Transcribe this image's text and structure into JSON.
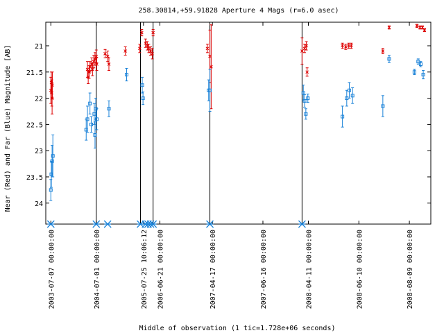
{
  "chart_data": {
    "type": "scatter",
    "title": "258.30814,+59.91828   Aperture 4 Mags (r=6.0 asec)",
    "xlabel": "Middle of observation (1 tic=1.728e+06 seconds)",
    "ylabel": "Near (Red) and Far (Blue) Magnitude [AB]",
    "ylim": [
      24.4,
      20.55
    ],
    "y_ticks": [
      21,
      21.5,
      22,
      22.5,
      23,
      23.5,
      24
    ],
    "x_tick_labels": [
      "2003-07-07 00:00:00",
      "2004-07-01 00:00:00",
      "2005-07-25 10:06:12",
      "2006-06-21 00:00:00",
      "2007-04-17 00:00:00",
      "2007-06-16 00:00:00",
      "2008-04-11 00:00:00",
      "2008-06-10 00:00:00",
      "2008-08-09 00:00:00"
    ],
    "x_tick_index": [
      0,
      1.8,
      3.67,
      4.32,
      6.4,
      8.4,
      10.2,
      12.2,
      14.2
    ],
    "x_range": [
      -0.2,
      15.05
    ],
    "vertical_lines_x": [
      1.8,
      3.55,
      4.05,
      6.3,
      9.95
    ],
    "star_markers_x": [
      0,
      1.8,
      2.25,
      3.55,
      3.75,
      3.85,
      3.95,
      4.05,
      6.3,
      9.95
    ],
    "series": [
      {
        "color": "#dd0000",
        "marker": "x",
        "points": [
          [
            0.0,
            21.85,
            0.25
          ],
          [
            0.02,
            21.7,
            0.2
          ],
          [
            0.04,
            21.9,
            0.25
          ],
          [
            0.06,
            21.75,
            0.25
          ],
          [
            0.05,
            22.0,
            0.3
          ],
          [
            1.45,
            21.45,
            0.15
          ],
          [
            1.48,
            21.6,
            0.12
          ],
          [
            1.52,
            21.5,
            0.12
          ],
          [
            1.55,
            21.4,
            0.1
          ],
          [
            1.62,
            21.35,
            0.12
          ],
          [
            1.65,
            21.45,
            0.12
          ],
          [
            1.7,
            21.3,
            0.12
          ],
          [
            1.75,
            21.25,
            0.12
          ],
          [
            1.8,
            21.2,
            0.12
          ],
          [
            1.82,
            21.35,
            0.12
          ],
          [
            2.15,
            21.15,
            0.08
          ],
          [
            2.25,
            21.2,
            0.1
          ],
          [
            2.3,
            21.35,
            0.12
          ],
          [
            2.95,
            21.1,
            0.08
          ],
          [
            3.52,
            21.05,
            0.08
          ],
          [
            3.6,
            20.75,
            0.06
          ],
          [
            3.75,
            20.95,
            0.08
          ],
          [
            3.82,
            21.0,
            0.08
          ],
          [
            3.88,
            21.05,
            0.08
          ],
          [
            3.95,
            21.1,
            0.08
          ],
          [
            4.02,
            21.15,
            0.1
          ],
          [
            4.05,
            20.75,
            0.06
          ],
          [
            6.2,
            21.05,
            0.08
          ],
          [
            6.3,
            21.2,
            0.5
          ],
          [
            6.35,
            21.4,
            0.8
          ],
          [
            9.95,
            21.1,
            0.25
          ],
          [
            10.05,
            21.05,
            0.08
          ],
          [
            10.12,
            21.0,
            0.08
          ],
          [
            10.15,
            21.5,
            0.08
          ],
          [
            11.55,
            21.0,
            0.05
          ],
          [
            11.68,
            21.02,
            0.05
          ],
          [
            11.8,
            21.0,
            0.05
          ],
          [
            11.9,
            21.0,
            0.05
          ],
          [
            13.15,
            21.1,
            0.05
          ],
          [
            13.4,
            20.65,
            0.03
          ],
          [
            14.5,
            20.62,
            0.03
          ],
          [
            14.62,
            20.65,
            0.03
          ],
          [
            14.72,
            20.65,
            0.03
          ],
          [
            14.8,
            20.7,
            0.03
          ]
        ]
      },
      {
        "color": "#1a82d8",
        "marker": "square",
        "points": [
          [
            0.0,
            23.75,
            0.2
          ],
          [
            0.02,
            23.45,
            0.25
          ],
          [
            0.05,
            23.2,
            0.3
          ],
          [
            0.08,
            23.1,
            0.4
          ],
          [
            1.4,
            22.6,
            0.2
          ],
          [
            1.45,
            22.4,
            0.25
          ],
          [
            1.55,
            22.1,
            0.2
          ],
          [
            1.6,
            22.5,
            0.15
          ],
          [
            1.72,
            22.3,
            0.2
          ],
          [
            1.75,
            22.7,
            0.25
          ],
          [
            1.78,
            22.2,
            0.2
          ],
          [
            1.82,
            22.4,
            0.2
          ],
          [
            2.3,
            22.2,
            0.15
          ],
          [
            3.0,
            21.55,
            0.12
          ],
          [
            3.62,
            21.75,
            0.15
          ],
          [
            3.65,
            22.0,
            0.12
          ],
          [
            6.25,
            21.85,
            0.2
          ],
          [
            6.3,
            21.85,
            0.4
          ],
          [
            10.0,
            21.9,
            0.15
          ],
          [
            10.05,
            22.05,
            0.12
          ],
          [
            10.1,
            22.3,
            0.1
          ],
          [
            10.18,
            22.0,
            0.08
          ],
          [
            11.55,
            22.35,
            0.2
          ],
          [
            11.72,
            22.0,
            0.15
          ],
          [
            11.82,
            21.85,
            0.15
          ],
          [
            11.95,
            21.95,
            0.15
          ],
          [
            13.15,
            22.15,
            0.2
          ],
          [
            13.4,
            21.25,
            0.07
          ],
          [
            14.4,
            21.5,
            0.05
          ],
          [
            14.55,
            21.3,
            0.05
          ],
          [
            14.65,
            21.35,
            0.05
          ],
          [
            14.75,
            21.55,
            0.08
          ]
        ]
      }
    ]
  }
}
